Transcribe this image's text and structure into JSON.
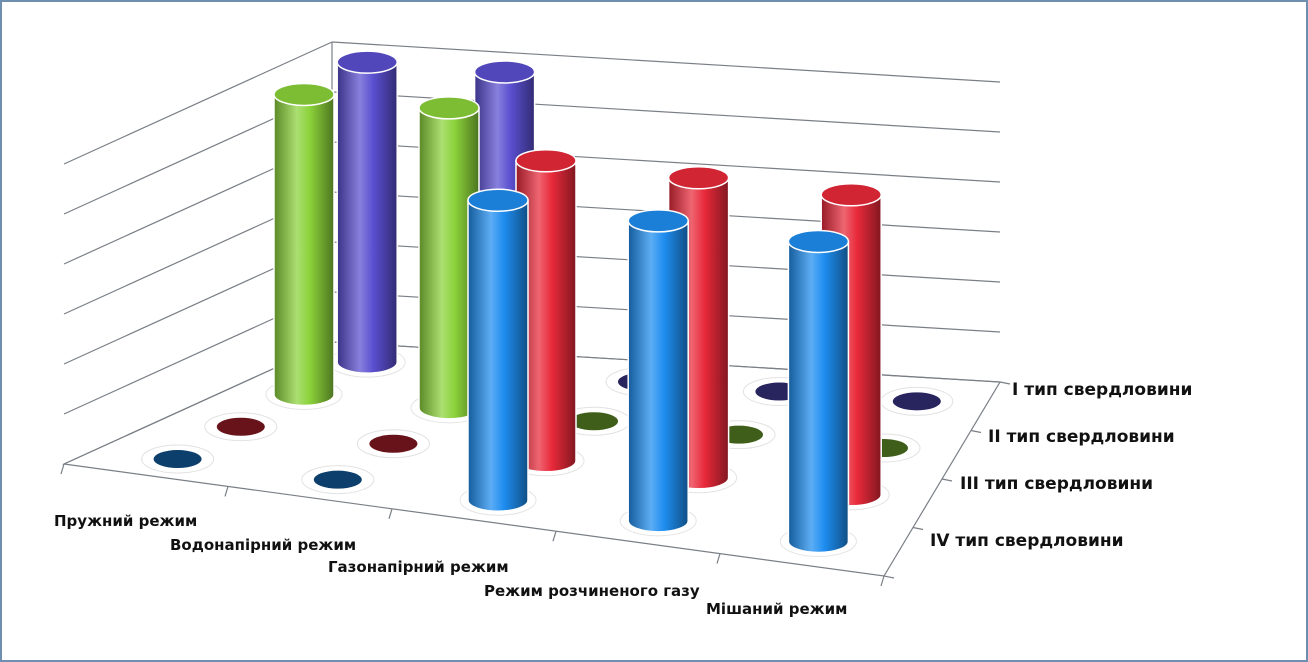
{
  "chart_data": {
    "type": "bar",
    "subtype": "3d-cylinder",
    "title": "",
    "xlabel": "",
    "ylabel": "",
    "categories": [
      "Пружний режим",
      "Водонапірний режим",
      "Газонапірний режим",
      "Режим розчиненого газу",
      "Мішаний режим"
    ],
    "series": [
      {
        "name": "I тип свердловини",
        "color": "#5a4fd0",
        "values": [
          1,
          1,
          0,
          0,
          0
        ]
      },
      {
        "name": "II тип свердловини",
        "color": "#8bd23a",
        "values": [
          1,
          1,
          0,
          0,
          0
        ]
      },
      {
        "name": "III тип свердловини",
        "color": "#e8293a",
        "values": [
          0,
          0,
          1,
          1,
          1
        ]
      },
      {
        "name": "IV тип свердловини",
        "color": "#1e8df0",
        "values": [
          0,
          0,
          1,
          1,
          1
        ]
      }
    ],
    "ylim": [
      0,
      1
    ],
    "grid": true,
    "legend": "none"
  }
}
